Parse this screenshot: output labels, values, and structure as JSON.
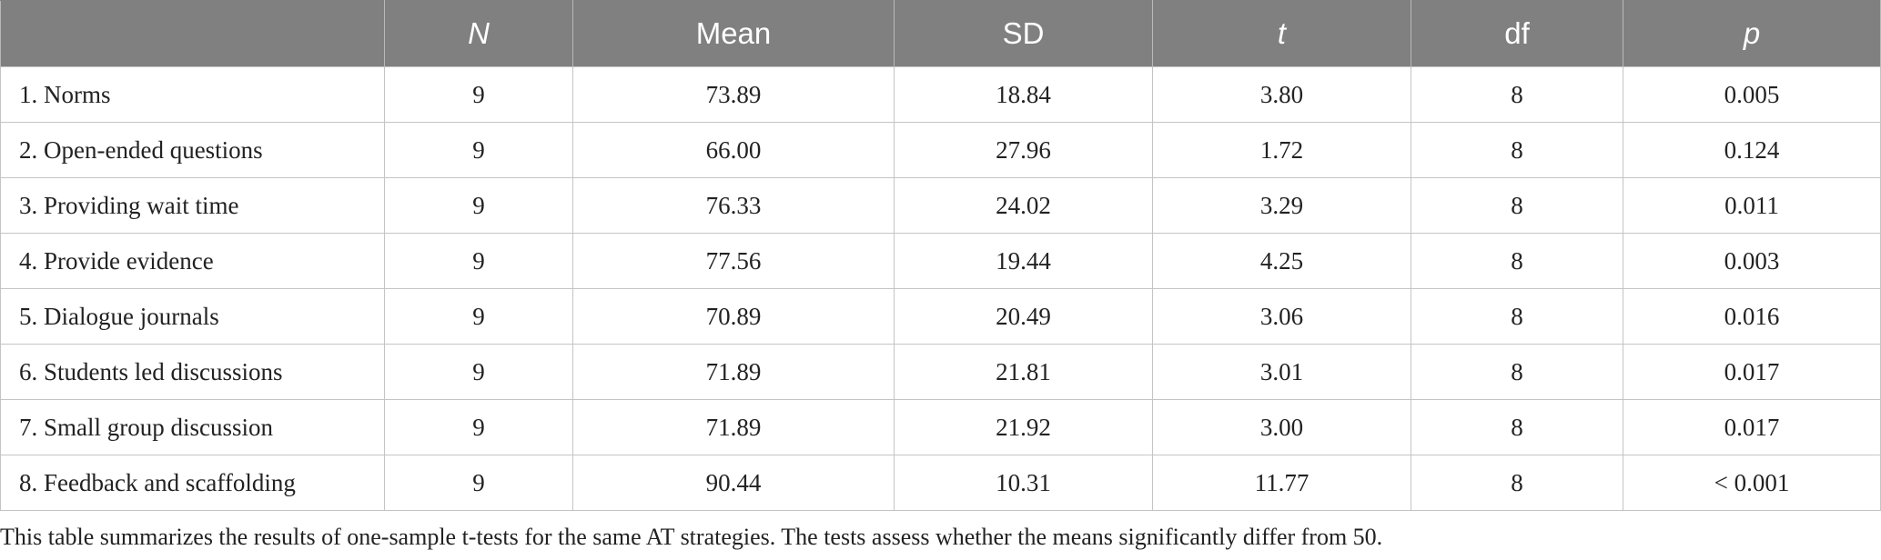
{
  "table": {
    "headers": [
      "",
      "N",
      "Mean",
      "SD",
      "t",
      "df",
      "p"
    ],
    "rows": [
      {
        "label": "1. Norms",
        "n": "9",
        "mean": "73.89",
        "sd": "18.84",
        "t": "3.80",
        "df": "8",
        "p": "0.005"
      },
      {
        "label": "2. Open-ended questions",
        "n": "9",
        "mean": "66.00",
        "sd": "27.96",
        "t": "1.72",
        "df": "8",
        "p": "0.124"
      },
      {
        "label": "3. Providing wait time",
        "n": "9",
        "mean": "76.33",
        "sd": "24.02",
        "t": "3.29",
        "df": "8",
        "p": "0.011"
      },
      {
        "label": "4. Provide evidence",
        "n": "9",
        "mean": "77.56",
        "sd": "19.44",
        "t": "4.25",
        "df": "8",
        "p": "0.003"
      },
      {
        "label": "5. Dialogue journals",
        "n": "9",
        "mean": "70.89",
        "sd": "20.49",
        "t": "3.06",
        "df": "8",
        "p": "0.016"
      },
      {
        "label": "6. Students led discussions",
        "n": "9",
        "mean": "71.89",
        "sd": "21.81",
        "t": "3.01",
        "df": "8",
        "p": "0.017"
      },
      {
        "label": "7. Small group discussion",
        "n": "9",
        "mean": "71.89",
        "sd": "21.92",
        "t": "3.00",
        "df": "8",
        "p": "0.017"
      },
      {
        "label": "8. Feedback and scaffolding",
        "n": "9",
        "mean": "90.44",
        "sd": "10.31",
        "t": "11.77",
        "df": "8",
        "p": "< 0.001"
      }
    ]
  },
  "footnote": "This table summarizes the results of one-sample t-tests for the same AT strategies. The tests assess whether the means significantly differ from 50."
}
